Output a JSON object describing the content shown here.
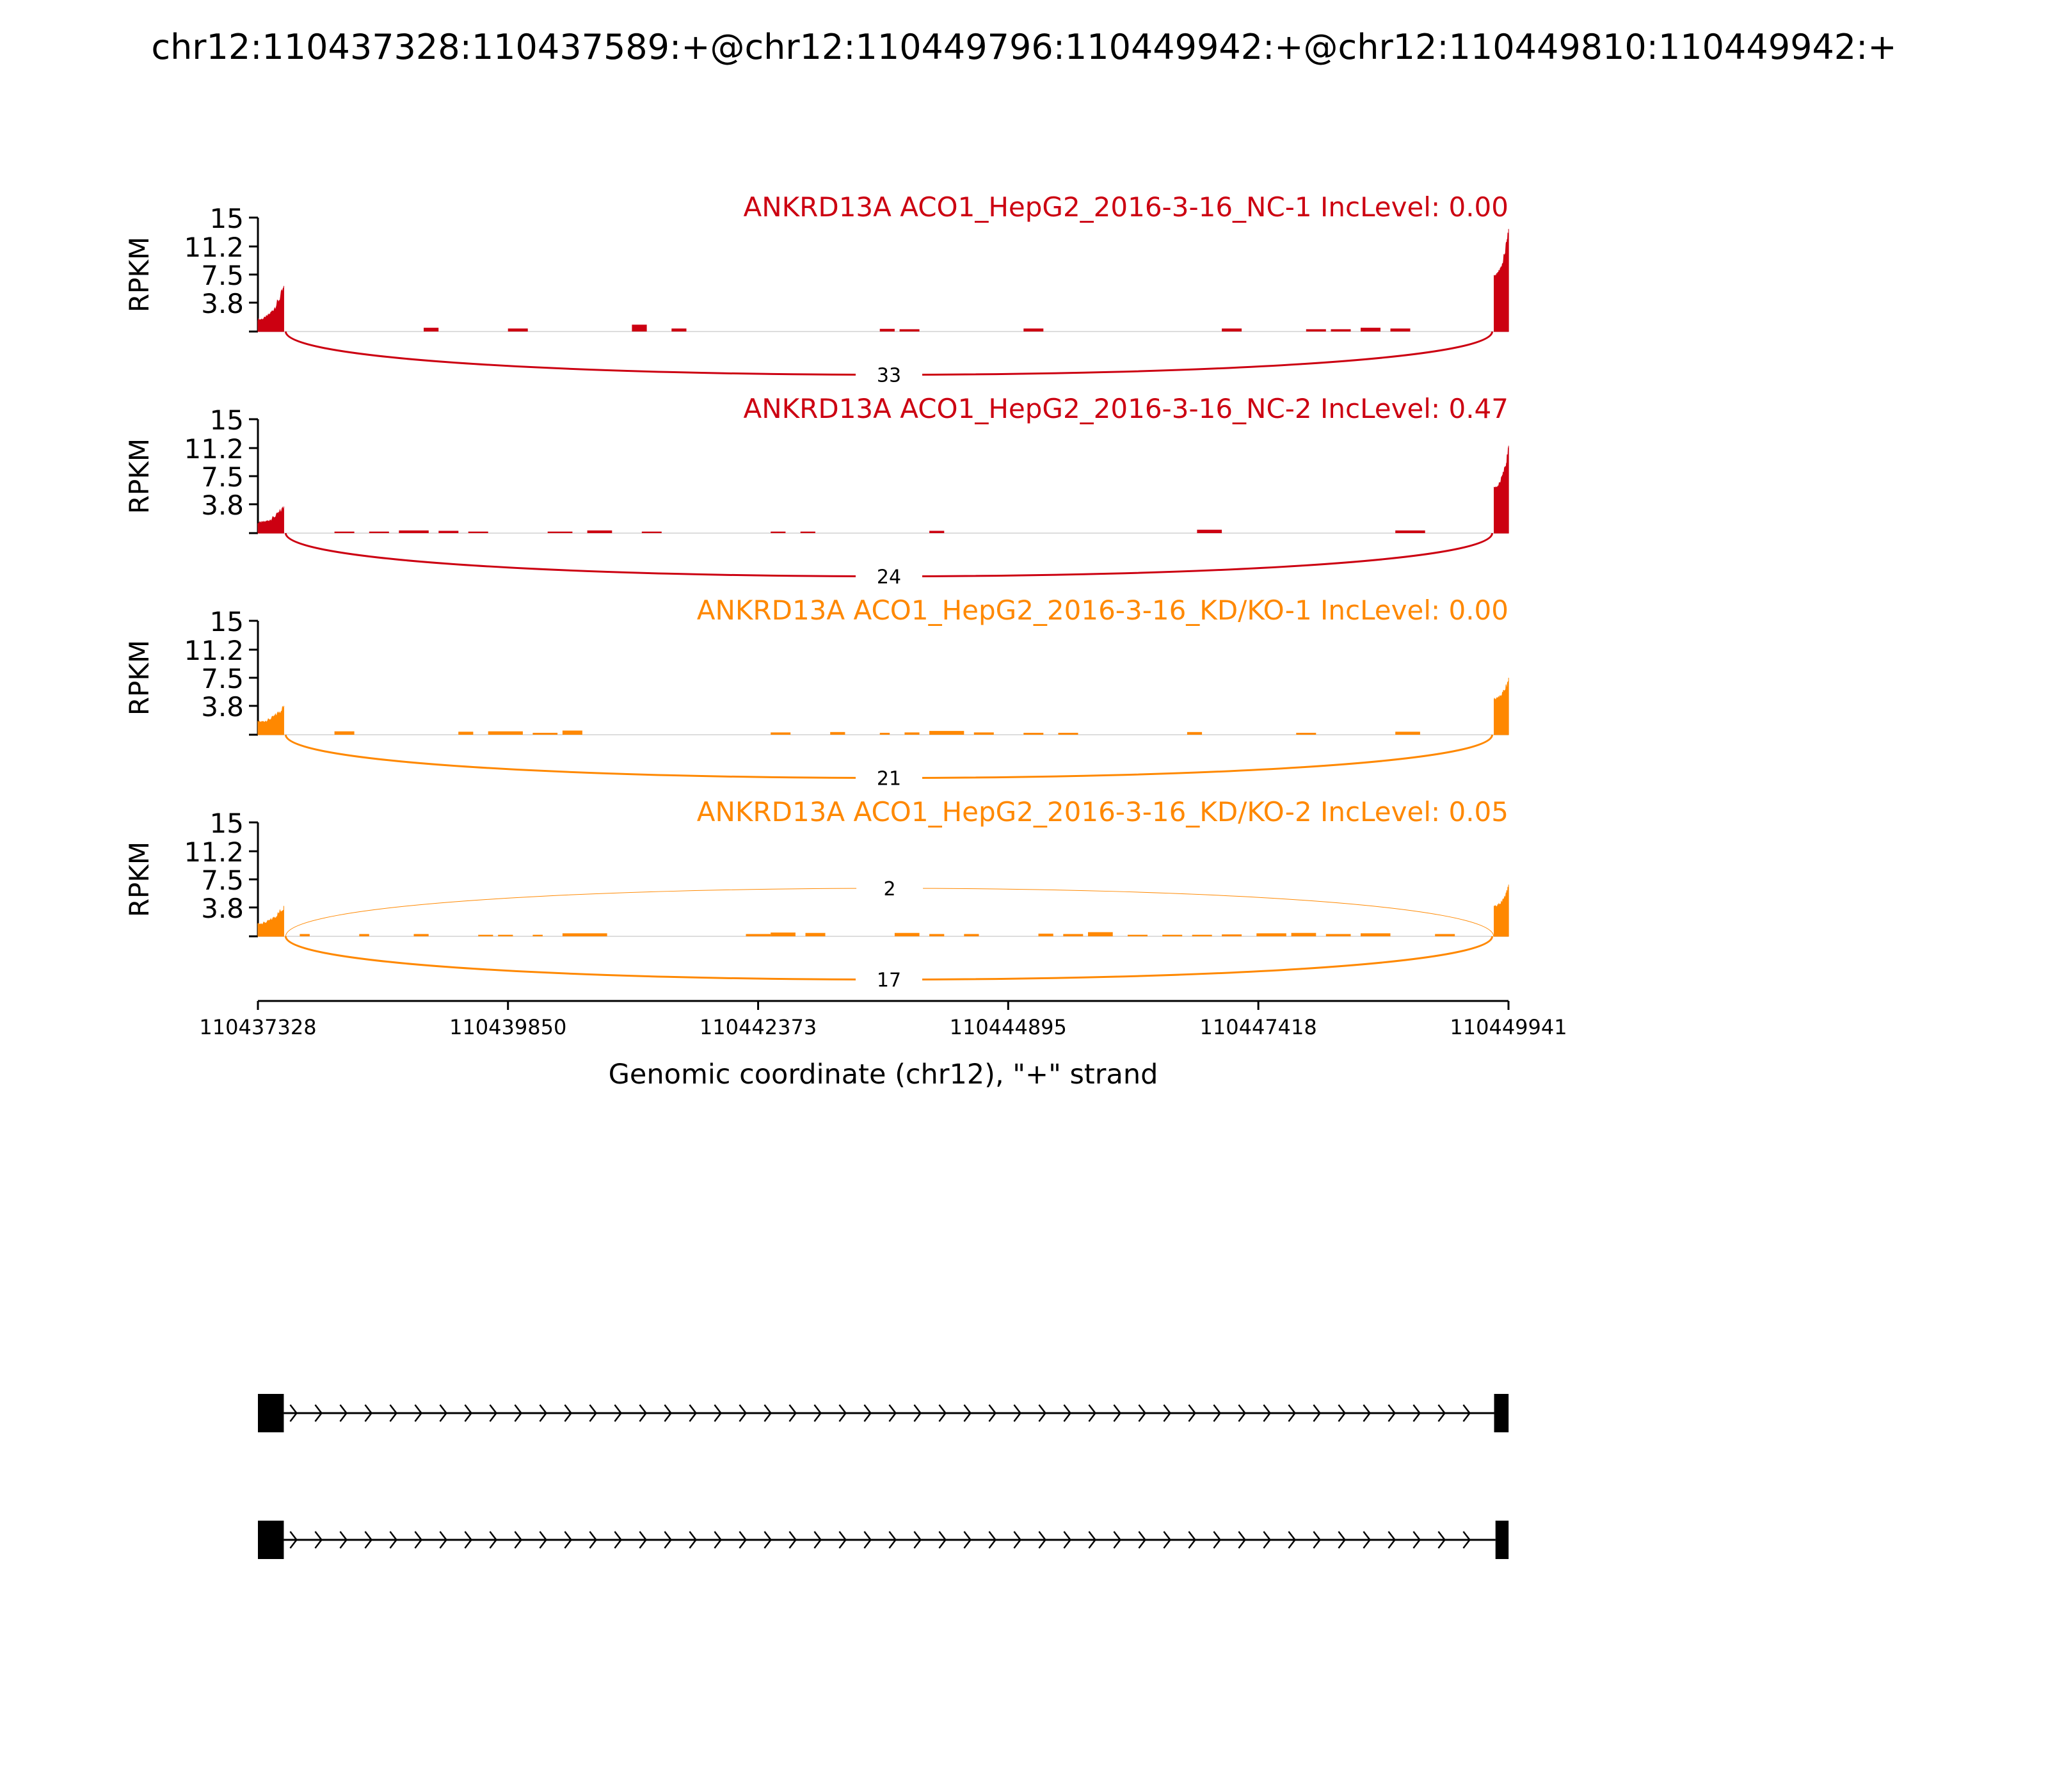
{
  "page_title": "chr12:110437328:110437589:+@chr12:110449796:110449942:+@chr12:110449810:110449942:+",
  "colors": {
    "nc": "#cc0011",
    "kd": "#ff8800",
    "axis": "#000000",
    "gene_model": "#000000"
  },
  "chart_data": {
    "type": "area",
    "subtype": "sashimi",
    "title": "chr12:110437328:110437589:+@chr12:110449796:110449942:+@chr12:110449810:110449942:+",
    "xlabel": "Genomic coordinate (chr12), \"+\" strand",
    "xlim": [
      110437328,
      110449941
    ],
    "x_ticks": [
      "110437328",
      "110439850",
      "110442373",
      "110444895",
      "110447418",
      "110449941"
    ],
    "ylabel": "RPKM",
    "ylim": [
      0,
      15
    ],
    "y_ticks": [
      "15",
      "11.2",
      "7.5",
      "3.8"
    ],
    "tracks": [
      {
        "label": "ANKRD13A ACO1_HepG2_2016-3-16_NC-1 IncLevel: 0.00",
        "group": "nc",
        "color": "#cc0011",
        "profile": {
          "exon1_start": 110437328,
          "exon1_end": 110437589,
          "exon1_base": 1.4,
          "exon1_peak": 6.0,
          "exon2_start": 110449796,
          "exon2_end": 110449942,
          "exon2_base": 7.2,
          "exon2_peak": 13.5
        },
        "intronic_islands": [
          {
            "x": [
              110439000,
              110439150
            ],
            "y": 0.5
          },
          {
            "x": [
              110439850,
              110440050
            ],
            "y": 0.4
          },
          {
            "x": [
              110441100,
              110441250
            ],
            "y": 0.9
          },
          {
            "x": [
              110441500,
              110441650
            ],
            "y": 0.4
          },
          {
            "x": [
              110443600,
              110443750
            ],
            "y": 0.35
          },
          {
            "x": [
              110443800,
              110444000
            ],
            "y": 0.3
          },
          {
            "x": [
              110445050,
              110445250
            ],
            "y": 0.4
          },
          {
            "x": [
              110447050,
              110447250
            ],
            "y": 0.4
          },
          {
            "x": [
              110447900,
              110448100
            ],
            "y": 0.3
          },
          {
            "x": [
              110448150,
              110448350
            ],
            "y": 0.3
          },
          {
            "x": [
              110448450,
              110448650
            ],
            "y": 0.5
          },
          {
            "x": [
              110448750,
              110448950
            ],
            "y": 0.4
          }
        ],
        "junctions": [
          {
            "from": 110437589,
            "to": 110449796,
            "count": 33,
            "side": "below"
          }
        ]
      },
      {
        "label": "ANKRD13A ACO1_HepG2_2016-3-16_NC-2 IncLevel: 0.47",
        "group": "nc",
        "color": "#cc0011",
        "profile": {
          "exon1_start": 110437328,
          "exon1_end": 110437589,
          "exon1_base": 1.2,
          "exon1_peak": 3.5,
          "exon2_start": 110449796,
          "exon2_end": 110449942,
          "exon2_base": 5.8,
          "exon2_peak": 11.5
        },
        "intronic_islands": [
          {
            "x": [
              110438100,
              110438300
            ],
            "y": 0.2
          },
          {
            "x": [
              110438450,
              110438650
            ],
            "y": 0.2
          },
          {
            "x": [
              110438750,
              110439050
            ],
            "y": 0.35
          },
          {
            "x": [
              110439150,
              110439350
            ],
            "y": 0.3
          },
          {
            "x": [
              110439450,
              110439650
            ],
            "y": 0.2
          },
          {
            "x": [
              110440250,
              110440500
            ],
            "y": 0.2
          },
          {
            "x": [
              110440650,
              110440900
            ],
            "y": 0.35
          },
          {
            "x": [
              110441200,
              110441400
            ],
            "y": 0.2
          },
          {
            "x": [
              110442500,
              110442650
            ],
            "y": 0.2
          },
          {
            "x": [
              110442800,
              110442950
            ],
            "y": 0.2
          },
          {
            "x": [
              110444100,
              110444250
            ],
            "y": 0.3
          },
          {
            "x": [
              110446800,
              110447050
            ],
            "y": 0.45
          },
          {
            "x": [
              110448800,
              110449100
            ],
            "y": 0.35
          }
        ],
        "junctions": [
          {
            "from": 110437589,
            "to": 110449796,
            "count": 24,
            "side": "below"
          }
        ]
      },
      {
        "label": "ANKRD13A ACO1_HepG2_2016-3-16_KD/KO-1 IncLevel: 0.00",
        "group": "kd",
        "color": "#ff8800",
        "profile": {
          "exon1_start": 110437328,
          "exon1_end": 110437589,
          "exon1_base": 1.5,
          "exon1_peak": 3.8,
          "exon2_start": 110449796,
          "exon2_end": 110449942,
          "exon2_base": 4.5,
          "exon2_peak": 7.5
        },
        "intronic_islands": [
          {
            "x": [
              110438100,
              110438300
            ],
            "y": 0.45
          },
          {
            "x": [
              110439350,
              110439500
            ],
            "y": 0.4
          },
          {
            "x": [
              110439650,
              110440000
            ],
            "y": 0.45
          },
          {
            "x": [
              110440100,
              110440350
            ],
            "y": 0.25
          },
          {
            "x": [
              110440400,
              110440600
            ],
            "y": 0.55
          },
          {
            "x": [
              110442500,
              110442700
            ],
            "y": 0.3
          },
          {
            "x": [
              110443100,
              110443250
            ],
            "y": 0.35
          },
          {
            "x": [
              110443600,
              110443700
            ],
            "y": 0.25
          },
          {
            "x": [
              110443850,
              110444000
            ],
            "y": 0.3
          },
          {
            "x": [
              110444100,
              110444450
            ],
            "y": 0.5
          },
          {
            "x": [
              110444550,
              110444750
            ],
            "y": 0.3
          },
          {
            "x": [
              110445050,
              110445250
            ],
            "y": 0.25
          },
          {
            "x": [
              110445400,
              110445600
            ],
            "y": 0.25
          },
          {
            "x": [
              110446700,
              110446850
            ],
            "y": 0.35
          },
          {
            "x": [
              110447800,
              110448000
            ],
            "y": 0.25
          },
          {
            "x": [
              110448800,
              110449050
            ],
            "y": 0.4
          }
        ],
        "junctions": [
          {
            "from": 110437589,
            "to": 110449796,
            "count": 21,
            "side": "below"
          }
        ]
      },
      {
        "label": "ANKRD13A ACO1_HepG2_2016-3-16_KD/KO-2 IncLevel: 0.05",
        "group": "kd",
        "color": "#ff8800",
        "profile": {
          "exon1_start": 110437328,
          "exon1_end": 110437589,
          "exon1_base": 1.5,
          "exon1_peak": 4.0,
          "exon2_start": 110449796,
          "exon2_end": 110449942,
          "exon2_base": 3.8,
          "exon2_peak": 6.8
        },
        "intronic_islands": [
          {
            "x": [
              110437750,
              110437850
            ],
            "y": 0.3
          },
          {
            "x": [
              110438350,
              110438450
            ],
            "y": 0.3
          },
          {
            "x": [
              110438900,
              110439050
            ],
            "y": 0.3
          },
          {
            "x": [
              110439550,
              110439700
            ],
            "y": 0.2
          },
          {
            "x": [
              110439750,
              110439900
            ],
            "y": 0.2
          },
          {
            "x": [
              110440100,
              110440200
            ],
            "y": 0.2
          },
          {
            "x": [
              110440400,
              110440850
            ],
            "y": 0.4
          },
          {
            "x": [
              110442250,
              110442500
            ],
            "y": 0.3
          },
          {
            "x": [
              110442500,
              110442750
            ],
            "y": 0.5
          },
          {
            "x": [
              110442850,
              110443050
            ],
            "y": 0.45
          },
          {
            "x": [
              110443750,
              110444000
            ],
            "y": 0.45
          },
          {
            "x": [
              110444100,
              110444250
            ],
            "y": 0.3
          },
          {
            "x": [
              110444450,
              110444600
            ],
            "y": 0.3
          },
          {
            "x": [
              110445200,
              110445350
            ],
            "y": 0.35
          },
          {
            "x": [
              110445450,
              110445650
            ],
            "y": 0.3
          },
          {
            "x": [
              110445700,
              110445950
            ],
            "y": 0.55
          },
          {
            "x": [
              110446100,
              110446300
            ],
            "y": 0.2
          },
          {
            "x": [
              110446450,
              110446650
            ],
            "y": 0.2
          },
          {
            "x": [
              110446750,
              110446950
            ],
            "y": 0.2
          },
          {
            "x": [
              110447050,
              110447250
            ],
            "y": 0.25
          },
          {
            "x": [
              110447400,
              110447700
            ],
            "y": 0.4
          },
          {
            "x": [
              110447750,
              110448000
            ],
            "y": 0.45
          },
          {
            "x": [
              110448100,
              110448350
            ],
            "y": 0.3
          },
          {
            "x": [
              110448450,
              110448750
            ],
            "y": 0.4
          },
          {
            "x": [
              110449200,
              110449400
            ],
            "y": 0.3
          }
        ],
        "junctions": [
          {
            "from": 110437589,
            "to": 110449796,
            "count": 17,
            "side": "below"
          },
          {
            "from": 110437589,
            "to": 110449810,
            "count": 2,
            "side": "above"
          }
        ]
      }
    ],
    "gene_models": [
      {
        "exons": [
          [
            110437328,
            110437589
          ],
          [
            110449796,
            110449942
          ]
        ]
      },
      {
        "exons": [
          [
            110437328,
            110437589
          ],
          [
            110449810,
            110449942
          ]
        ]
      }
    ]
  }
}
